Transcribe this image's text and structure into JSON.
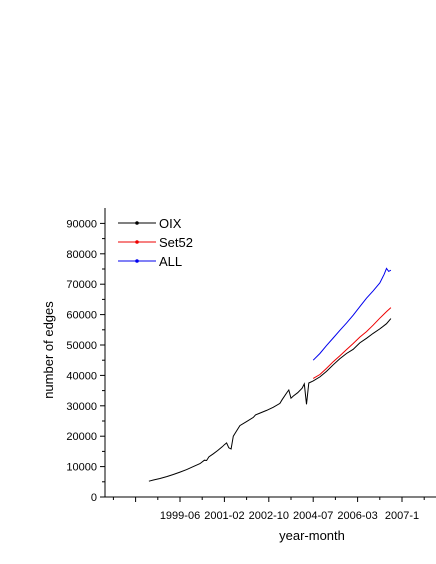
{
  "chart_data": {
    "type": "line",
    "title": "",
    "xlabel": "year-month",
    "ylabel": "number of edges",
    "x_tick_labels": [
      "1999-06",
      "2001-02",
      "2002-10",
      "2004-07",
      "2006-03",
      "2007-1"
    ],
    "y_ticks": [
      0,
      10000,
      20000,
      30000,
      40000,
      50000,
      60000,
      70000,
      80000,
      90000
    ],
    "y_tick_labels": [
      "0",
      "10000",
      "20000",
      "30000",
      "40000",
      "50000",
      "60000",
      "70000",
      "80000",
      "90000"
    ],
    "ylim": [
      0,
      95000
    ],
    "x_unit": "month index",
    "grid": false,
    "legend_position": "top-left",
    "series": [
      {
        "name": "OIX",
        "color": "#000000",
        "points": [
          [
            -14,
            5200
          ],
          [
            -12,
            5600
          ],
          [
            -9,
            6100
          ],
          [
            -6,
            6700
          ],
          [
            -3,
            7400
          ],
          [
            0,
            8200
          ],
          [
            3,
            9000
          ],
          [
            6,
            10000
          ],
          [
            9,
            11000
          ],
          [
            11,
            12100
          ],
          [
            12,
            12000
          ],
          [
            13,
            13200
          ],
          [
            15,
            14200
          ],
          [
            17,
            15300
          ],
          [
            19,
            16500
          ],
          [
            20,
            17200
          ],
          [
            21,
            17800
          ],
          [
            22,
            16200
          ],
          [
            23,
            15800
          ],
          [
            24,
            20000
          ],
          [
            25,
            21200
          ],
          [
            27,
            23500
          ],
          [
            30,
            24800
          ],
          [
            33,
            26200
          ],
          [
            34,
            27000
          ],
          [
            36,
            27600
          ],
          [
            39,
            28500
          ],
          [
            42,
            29500
          ],
          [
            45,
            30800
          ],
          [
            46,
            32000
          ],
          [
            48,
            34200
          ],
          [
            49,
            35200
          ],
          [
            50,
            32500
          ],
          [
            51,
            33200
          ],
          [
            53,
            34300
          ],
          [
            55,
            35800
          ],
          [
            56,
            37200
          ],
          [
            57,
            30500
          ],
          [
            58,
            37500
          ],
          [
            60,
            38200
          ],
          [
            63,
            39500
          ],
          [
            66,
            41300
          ],
          [
            69,
            43500
          ],
          [
            72,
            45500
          ],
          [
            75,
            47200
          ],
          [
            78,
            48600
          ],
          [
            81,
            50700
          ],
          [
            84,
            52200
          ],
          [
            87,
            53800
          ],
          [
            90,
            55300
          ],
          [
            93,
            57000
          ],
          [
            95,
            58700
          ]
        ]
      },
      {
        "name": "Set52",
        "color": "#ee0000",
        "points": [
          [
            60,
            39000
          ],
          [
            63,
            40300
          ],
          [
            66,
            42300
          ],
          [
            69,
            44500
          ],
          [
            72,
            46400
          ],
          [
            75,
            48500
          ],
          [
            78,
            50500
          ],
          [
            81,
            52600
          ],
          [
            84,
            54400
          ],
          [
            87,
            56500
          ],
          [
            90,
            58800
          ],
          [
            93,
            61000
          ],
          [
            95,
            62300
          ]
        ]
      },
      {
        "name": "ALL",
        "color": "#0000ee",
        "points": [
          [
            60,
            45000
          ],
          [
            63,
            47200
          ],
          [
            66,
            49800
          ],
          [
            69,
            52300
          ],
          [
            72,
            54800
          ],
          [
            75,
            57200
          ],
          [
            78,
            59800
          ],
          [
            81,
            62600
          ],
          [
            84,
            65400
          ],
          [
            87,
            67800
          ],
          [
            90,
            70400
          ],
          [
            92,
            73300
          ],
          [
            93,
            75200
          ],
          [
            94,
            74200
          ],
          [
            95,
            74600
          ]
        ]
      }
    ]
  }
}
